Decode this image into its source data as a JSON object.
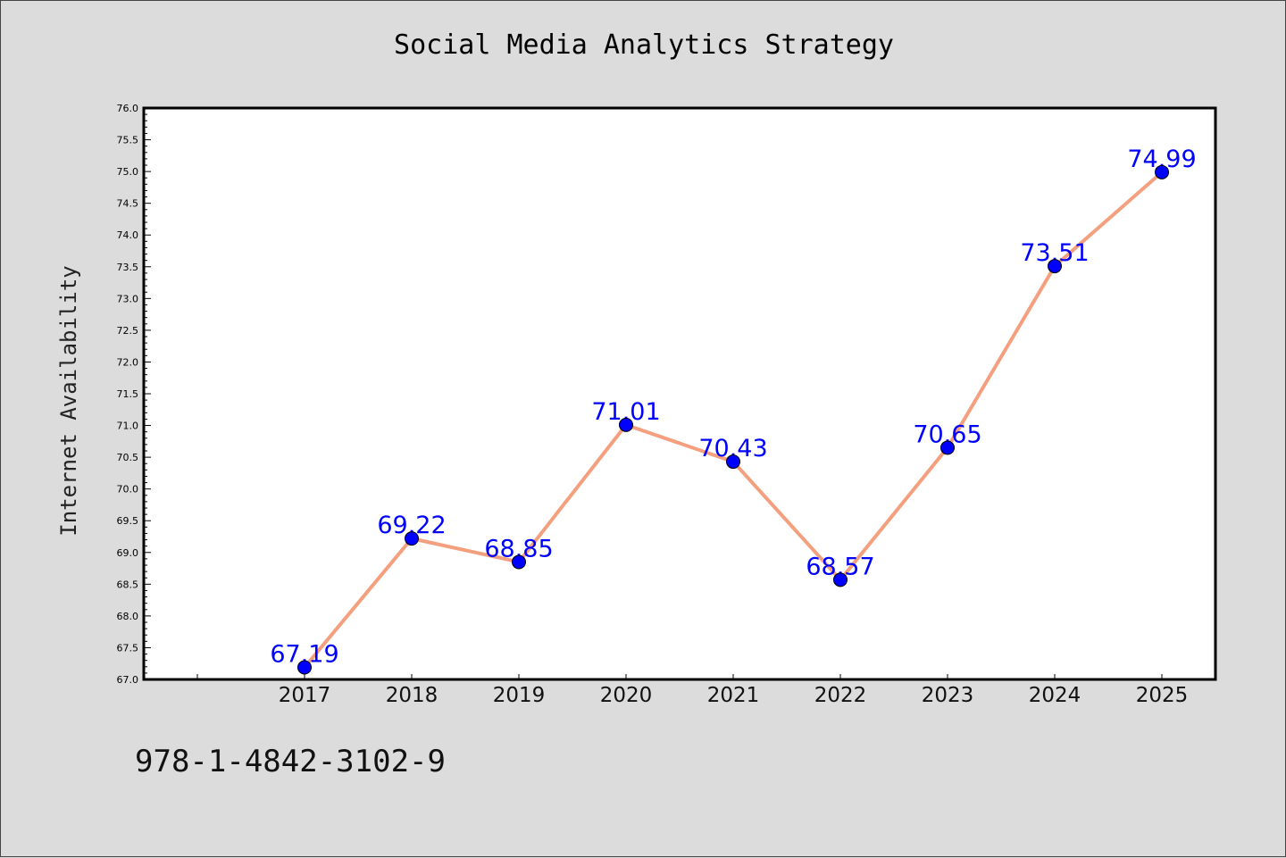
{
  "chart_data": {
    "type": "line",
    "title": "Social Media Analytics Strategy",
    "ylabel": "Internet Availability",
    "xlabel": "",
    "categories": [
      "2017",
      "2018",
      "2019",
      "2020",
      "2021",
      "2022",
      "2023",
      "2024",
      "2025"
    ],
    "series": [
      {
        "values": [
          67.19,
          69.22,
          68.85,
          71.01,
          70.43,
          68.57,
          70.65,
          73.51,
          74.99
        ],
        "line_color": "#f4a07f",
        "marker_color": "#0000ff",
        "label_color": "#0000ff"
      }
    ],
    "data_labels": [
      "67.19",
      "69.22",
      "68.85",
      "71.01",
      "70.43",
      "68.57",
      "70.65",
      "73.51",
      "74.99"
    ],
    "ylim": [
      67.0,
      76.0
    ],
    "yticks": [
      "67.0",
      "67.5",
      "68.0",
      "68.5",
      "69.0",
      "69.5",
      "70.0",
      "70.5",
      "71.0",
      "71.5",
      "72.0",
      "72.5",
      "73.0",
      "73.5",
      "74.0",
      "74.5",
      "75.0",
      "75.5",
      "76.0"
    ],
    "grid": false,
    "legend": "none"
  },
  "footer": {
    "isbn": "978-1-4842-3102-9"
  },
  "colors": {
    "background": "#dcdcdc",
    "plot_area": "#ffffff"
  }
}
